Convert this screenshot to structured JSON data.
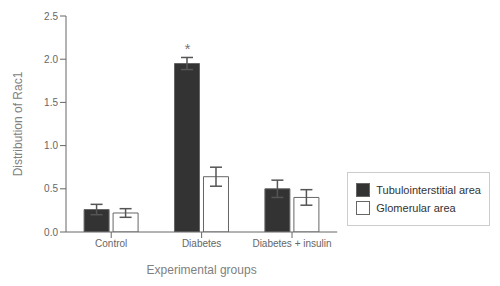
{
  "chart_data": {
    "type": "bar",
    "categories": [
      "Control",
      "Diabetes",
      "Diabetes + insulin"
    ],
    "series": [
      {
        "name": "Tubulointerstitial area",
        "color": "#333333",
        "values": [
          0.26,
          1.95,
          0.5
        ],
        "errors": [
          0.06,
          0.07,
          0.1
        ]
      },
      {
        "name": "Glomerular area",
        "color": "#ffffff",
        "values": [
          0.22,
          0.64,
          0.4
        ],
        "errors": [
          0.05,
          0.11,
          0.09
        ]
      }
    ],
    "xlabel": "Experimental groups",
    "ylabel": "Distribution of Rac1",
    "ylim": [
      0,
      2.5
    ],
    "yticks": [
      0.0,
      0.5,
      1.0,
      1.5,
      2.0,
      2.5
    ],
    "grid": false,
    "legend": "right",
    "annotations": [
      {
        "text": "*",
        "category": "Diabetes",
        "series": "Tubulointerstitial area"
      }
    ]
  }
}
